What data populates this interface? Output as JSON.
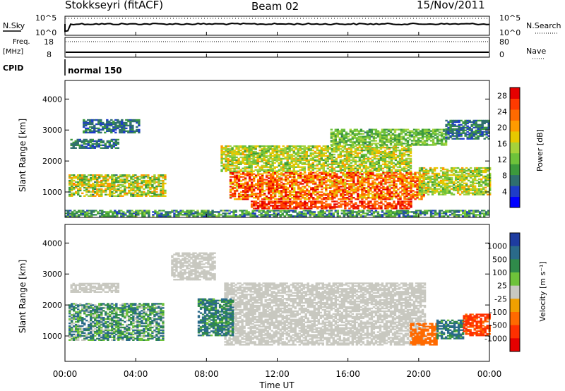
{
  "header": {
    "station": "Stokkseyri (fitACF)",
    "beam": "Beam 02",
    "date": "15/Nov/2011"
  },
  "panels": {
    "nsky": {
      "left_label": "N.Sky",
      "left_ticks": [
        "10^5",
        "10^0"
      ],
      "right_ticks": [
        "10^5",
        "10^0"
      ],
      "right_label": "N.Search"
    },
    "freq": {
      "left_label_top": "Freq.",
      "left_label_unit": "[MHz]",
      "left_ticks": [
        "18",
        "8"
      ],
      "right_ticks": [
        "80",
        "0"
      ],
      "right_label": "Nave"
    },
    "cpid": {
      "label": "CPID",
      "mode": "normal 150"
    }
  },
  "chart_data": [
    {
      "type": "heatmap",
      "name": "power",
      "ylabel": "Slant Range [km]",
      "xlabel": "Time UT",
      "y_ticks": [
        "4000",
        "3000",
        "2000",
        "1000"
      ],
      "y_tick_values": [
        4000,
        3000,
        2000,
        1000
      ],
      "ylim": [
        180,
        4600
      ],
      "x_ticks": [
        "00:00",
        "04:00",
        "08:00",
        "12:00",
        "16:00",
        "20:00",
        "00:00"
      ],
      "x_tick_hours": [
        0,
        4,
        8,
        12,
        16,
        20,
        24
      ],
      "colorbar": {
        "label": "Power [dB]",
        "ticks": [
          "28",
          "24",
          "20",
          "16",
          "12",
          "8",
          "4"
        ],
        "tick_values": [
          28,
          24,
          20,
          16,
          12,
          8,
          4
        ],
        "range": [
          0,
          30
        ],
        "colors": [
          "#0000ff",
          "#1e3cc8",
          "#2f6f6f",
          "#3c9a3c",
          "#6ec23a",
          "#a5d23a",
          "#e6c800",
          "#ff9a00",
          "#ff6a00",
          "#ff3a00",
          "#e60000"
        ]
      },
      "regions": [
        {
          "t": [
            0.2,
            5.7
          ],
          "r": [
            850,
            1550
          ],
          "v": [
            8,
            22
          ]
        },
        {
          "t": [
            0.3,
            3.0
          ],
          "r": [
            2400,
            2700
          ],
          "v": [
            4,
            10
          ]
        },
        {
          "t": [
            1.0,
            4.2
          ],
          "r": [
            2900,
            3350
          ],
          "v": [
            4,
            9
          ]
        },
        {
          "t": [
            9.3,
            20.3
          ],
          "r": [
            750,
            1650
          ],
          "v": [
            16,
            30
          ]
        },
        {
          "t": [
            10.5,
            19.5
          ],
          "r": [
            450,
            700
          ],
          "v": [
            22,
            30
          ]
        },
        {
          "t": [
            8.8,
            19.5
          ],
          "r": [
            1650,
            2500
          ],
          "v": [
            10,
            20
          ]
        },
        {
          "t": [
            15.0,
            21.5
          ],
          "r": [
            2500,
            3000
          ],
          "v": [
            8,
            16
          ]
        },
        {
          "t": [
            20.0,
            24.0
          ],
          "r": [
            900,
            1800
          ],
          "v": [
            10,
            20
          ]
        },
        {
          "t": [
            21.5,
            24.0
          ],
          "r": [
            2700,
            3300
          ],
          "v": [
            4,
            10
          ]
        },
        {
          "t": [
            0.0,
            24.0
          ],
          "r": [
            200,
            420
          ],
          "v": [
            4,
            14
          ]
        }
      ]
    },
    {
      "type": "heatmap",
      "name": "velocity",
      "ylabel": "Slant Range [km]",
      "xlabel": "Time UT",
      "y_ticks": [
        "4000",
        "3000",
        "2000",
        "1000"
      ],
      "y_tick_values": [
        4000,
        3000,
        2000,
        1000
      ],
      "ylim": [
        180,
        4600
      ],
      "x_ticks": [
        "00:00",
        "04:00",
        "08:00",
        "12:00",
        "16:00",
        "20:00",
        "00:00"
      ],
      "x_tick_hours": [
        0,
        4,
        8,
        12,
        16,
        20,
        24
      ],
      "colorbar": {
        "label": "Velocity [m s⁻¹]",
        "ticks": [
          "1000",
          "500",
          "100",
          "25",
          "-25",
          "-100",
          "-500",
          "-1000"
        ],
        "colors": [
          "#1e3ca0",
          "#2a6a8a",
          "#2f8a4a",
          "#6ec23a",
          "#c8c8c0",
          "#f0a000",
          "#ff6a00",
          "#ff3000",
          "#e60000"
        ]
      },
      "regions": [
        {
          "t": [
            0.2,
            5.5
          ],
          "r": [
            850,
            2050
          ],
          "v": [
            0,
            150
          ]
        },
        {
          "t": [
            9.0,
            20.3
          ],
          "r": [
            700,
            2700
          ],
          "v": [
            -20,
            20
          ]
        },
        {
          "t": [
            0.3,
            3.0
          ],
          "r": [
            2400,
            2700
          ],
          "v": [
            -20,
            20
          ]
        },
        {
          "t": [
            19.5,
            21.0
          ],
          "r": [
            700,
            1400
          ],
          "v": [
            -200,
            -100
          ]
        },
        {
          "t": [
            21.0,
            22.5
          ],
          "r": [
            900,
            1500
          ],
          "v": [
            50,
            200
          ]
        },
        {
          "t": [
            22.5,
            24.0
          ],
          "r": [
            1000,
            1700
          ],
          "v": [
            -800,
            -400
          ]
        },
        {
          "t": [
            7.5,
            9.5
          ],
          "r": [
            1000,
            2200
          ],
          "v": [
            50,
            150
          ]
        },
        {
          "t": [
            6.0,
            8.5
          ],
          "r": [
            2800,
            3700
          ],
          "v": [
            -20,
            20
          ]
        }
      ]
    }
  ]
}
